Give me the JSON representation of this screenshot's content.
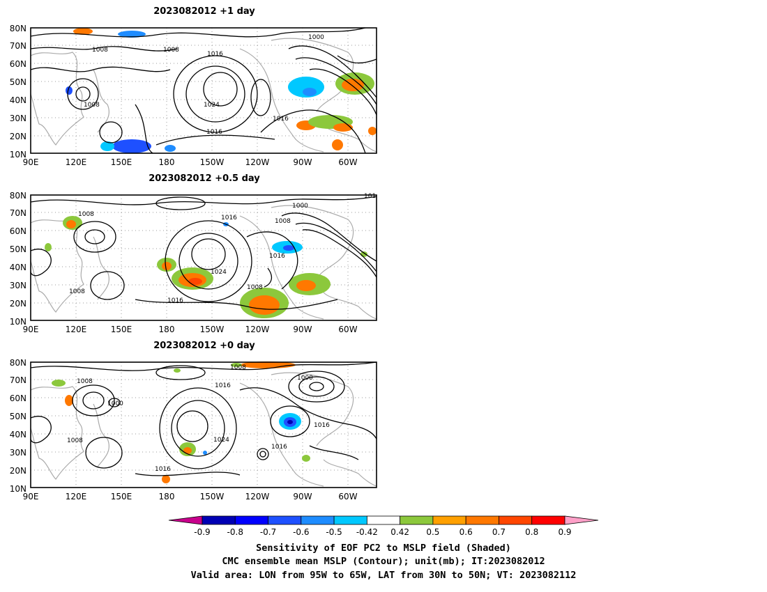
{
  "panels": [
    {
      "title": "2023082012  +1 day",
      "yticks": [
        "80N",
        "70N",
        "60N",
        "50N",
        "40N",
        "30N",
        "20N",
        "10N"
      ],
      "xticks": [
        "90E",
        "120E",
        "150E",
        "180",
        "150W",
        "120W",
        "90W",
        "60W"
      ],
      "contour_labels": [
        "1008",
        "1008",
        "1016",
        "1000",
        "1008",
        "1024",
        "1016",
        "1016"
      ]
    },
    {
      "title": "2023082012  +0.5 day",
      "yticks": [
        "80N",
        "70N",
        "60N",
        "50N",
        "40N",
        "30N",
        "20N",
        "10N"
      ],
      "xticks": [
        "90E",
        "120E",
        "150E",
        "180",
        "150W",
        "120W",
        "90W",
        "60W"
      ],
      "contour_labels": [
        "1008",
        "1016",
        "1000",
        "1008",
        "1016",
        "1024",
        "1008",
        "1008",
        "1016",
        "101"
      ]
    },
    {
      "title": "2023082012  +0 day",
      "yticks": [
        "80N",
        "70N",
        "60N",
        "50N",
        "40N",
        "30N",
        "20N",
        "10N"
      ],
      "xticks": [
        "90E",
        "120E",
        "150E",
        "180",
        "150W",
        "120W",
        "90W",
        "60W"
      ],
      "contour_labels": [
        "1008",
        "1008",
        "1016",
        "1000",
        "1000",
        "1016",
        "1008",
        "1024",
        "1016",
        "1016"
      ]
    }
  ],
  "colorbar": {
    "ticks": [
      "-0.9",
      "-0.8",
      "-0.7",
      "-0.6",
      "-0.5",
      "-0.42",
      "0.42",
      "0.5",
      "0.6",
      "0.7",
      "0.8",
      "0.9"
    ],
    "colors": [
      "#0000b4",
      "#0000ff",
      "#1e50ff",
      "#1e8cff",
      "#00c8ff",
      "#ffffff",
      "#8cc83c",
      "#ffa000",
      "#ff7800",
      "#ff4600",
      "#ff0000"
    ],
    "left_arrow_color": "#c8008c",
    "right_arrow_color": "#ffa0c8"
  },
  "caption": {
    "line1": "Sensitivity of EOF PC2 to MSLP field (Shaded)",
    "line2": "CMC ensemble mean MSLP (Contour); unit(mb); IT:2023082012",
    "line3": "Valid area: LON from 95W to 65W, LAT from 30N to 50N; VT: 2023082112"
  }
}
